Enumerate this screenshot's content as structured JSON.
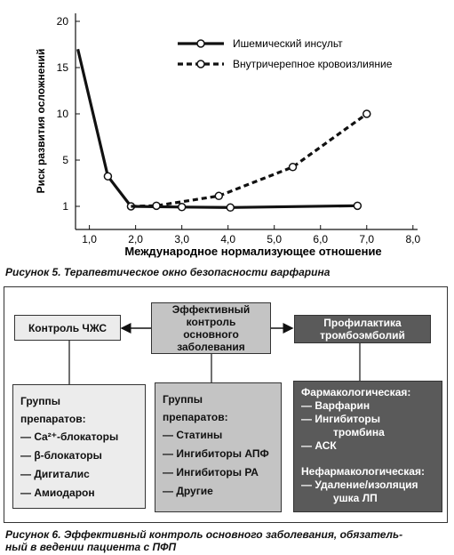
{
  "chart_data": {
    "type": "line",
    "ylabel": "Риск развития осложнений",
    "xlabel": "Международное нормализующее отношение",
    "xlim": [
      0.7,
      8.1
    ],
    "xticks": [
      {
        "value": 1,
        "label": "1,0"
      },
      {
        "value": 2,
        "label": "2,0"
      },
      {
        "value": 3,
        "label": "3,0"
      },
      {
        "value": 4,
        "label": "4,0"
      },
      {
        "value": 5,
        "label": "5,0"
      },
      {
        "value": 6,
        "label": "6,0"
      },
      {
        "value": 7,
        "label": "7,0"
      },
      {
        "value": 8,
        "label": "8,0"
      }
    ],
    "ylim": [
      0,
      20.8
    ],
    "yticks": [
      1,
      5,
      10,
      15,
      20
    ],
    "series": [
      {
        "name": "Ишемический инсульт",
        "color": "#111111",
        "dashed": false,
        "x": [
          0.75,
          1.4,
          1.9,
          3.0,
          4.05,
          6.8
        ],
        "values": [
          17,
          3.6,
          1.0,
          0.97,
          0.95,
          1.05
        ]
      },
      {
        "name": "Внутричерепное кровоизлияние",
        "color": "#111111",
        "dashed": true,
        "x": [
          1.9,
          2.45,
          3.8,
          5.4,
          7.0
        ],
        "values": [
          1.0,
          1.05,
          1.9,
          4.4,
          10
        ]
      }
    ]
  },
  "captions": [
    "Рисунок 5. Терапевтическое окно безопасности варфарина",
    "Рисунок 6. Эффективный контроль основного заболевания, обязатель-",
    "ный в ведении пациента с ПФП"
  ],
  "diagram": {
    "nodes": [
      {
        "label": "Контроль ЧЖС"
      },
      {
        "label": "Эффективный контроль основного заболевания"
      },
      {
        "label": "Профилактика тромбоэмболий"
      }
    ],
    "groups": [
      {
        "title": "Группы препаратов:",
        "items": [
          "— Ca²⁺-блокаторы",
          "— β-блокаторы",
          "— Дигиталис",
          "— Амиодарон"
        ]
      },
      {
        "title": "Группы препаратов:",
        "items": [
          "— Статины",
          "— Ингибиторы АПФ",
          "— Ингибиторы РА",
          "— Другие"
        ]
      },
      {
        "sections": [
          {
            "title": "Фармакологическая:",
            "items": [
              "— Варфарин",
              "— Ингибиторы",
              "тромбина",
              "— АСК"
            ]
          },
          {
            "title": "Нефармакологическая:",
            "items": [
              "— Удаление/изоляция",
              "ушка ЛП"
            ]
          }
        ]
      }
    ]
  }
}
